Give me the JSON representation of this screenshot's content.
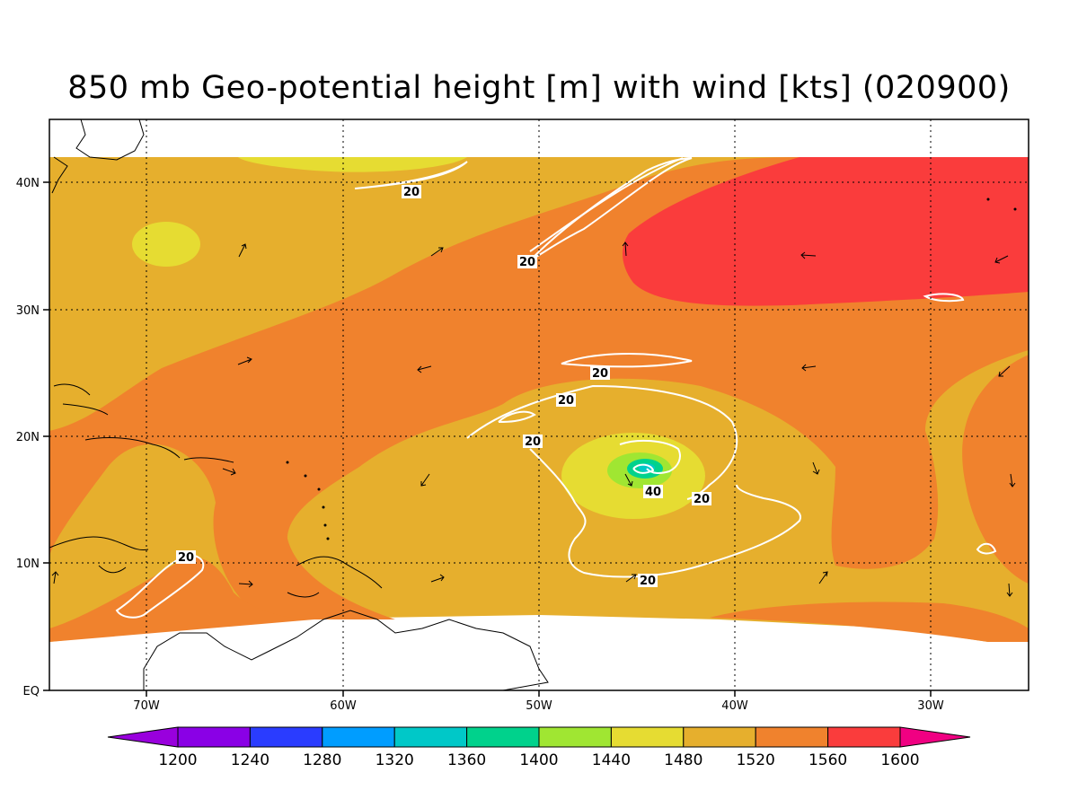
{
  "title": "850 mb Geo-potential height [m] with wind [kts] (020900)",
  "map": {
    "lat_labels": [
      "40N",
      "30N",
      "20N",
      "10N",
      "EQ"
    ],
    "lon_labels": [
      "70W",
      "60W",
      "50W",
      "40W",
      "30W"
    ],
    "contour_labels": [
      "20",
      "20",
      "20",
      "20",
      "20",
      "20",
      "40",
      "20",
      "20"
    ]
  },
  "colorbar": {
    "levels": [
      "1200",
      "1240",
      "1280",
      "1320",
      "1360",
      "1400",
      "1440",
      "1480",
      "1520",
      "1560",
      "1600"
    ],
    "colors": [
      "#9900dd",
      "#8a00e6",
      "#2a3cff",
      "#009dff",
      "#00c8c8",
      "#00d28c",
      "#a0e632",
      "#e6dc32",
      "#e6af2d",
      "#f0822d",
      "#fa3c3c",
      "#f00082"
    ]
  }
}
